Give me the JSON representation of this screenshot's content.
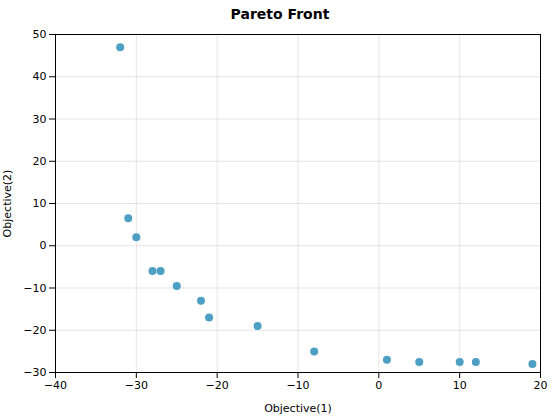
{
  "chart_data": {
    "type": "scatter",
    "title": "Pareto Front",
    "xlabel": "Objective(1)",
    "ylabel": "Objective(2)",
    "x": [
      -32,
      -31,
      -30,
      -28,
      -27,
      -25,
      -22,
      -21,
      -15,
      -8,
      1,
      5,
      10,
      12,
      19
    ],
    "y": [
      47,
      6.5,
      2,
      -6,
      -6,
      -9.5,
      -13,
      -17,
      -19,
      -25,
      -27,
      -27.5,
      -27.5,
      -27.5,
      -28
    ],
    "xlim": [
      -40,
      20
    ],
    "ylim": [
      -30,
      50
    ],
    "xticks": [
      -40,
      -30,
      -20,
      -10,
      0,
      10,
      20
    ],
    "yticks": [
      -30,
      -20,
      -10,
      0,
      10,
      20,
      30,
      40,
      50
    ],
    "color": "#4D9FC4",
    "grid": true
  }
}
